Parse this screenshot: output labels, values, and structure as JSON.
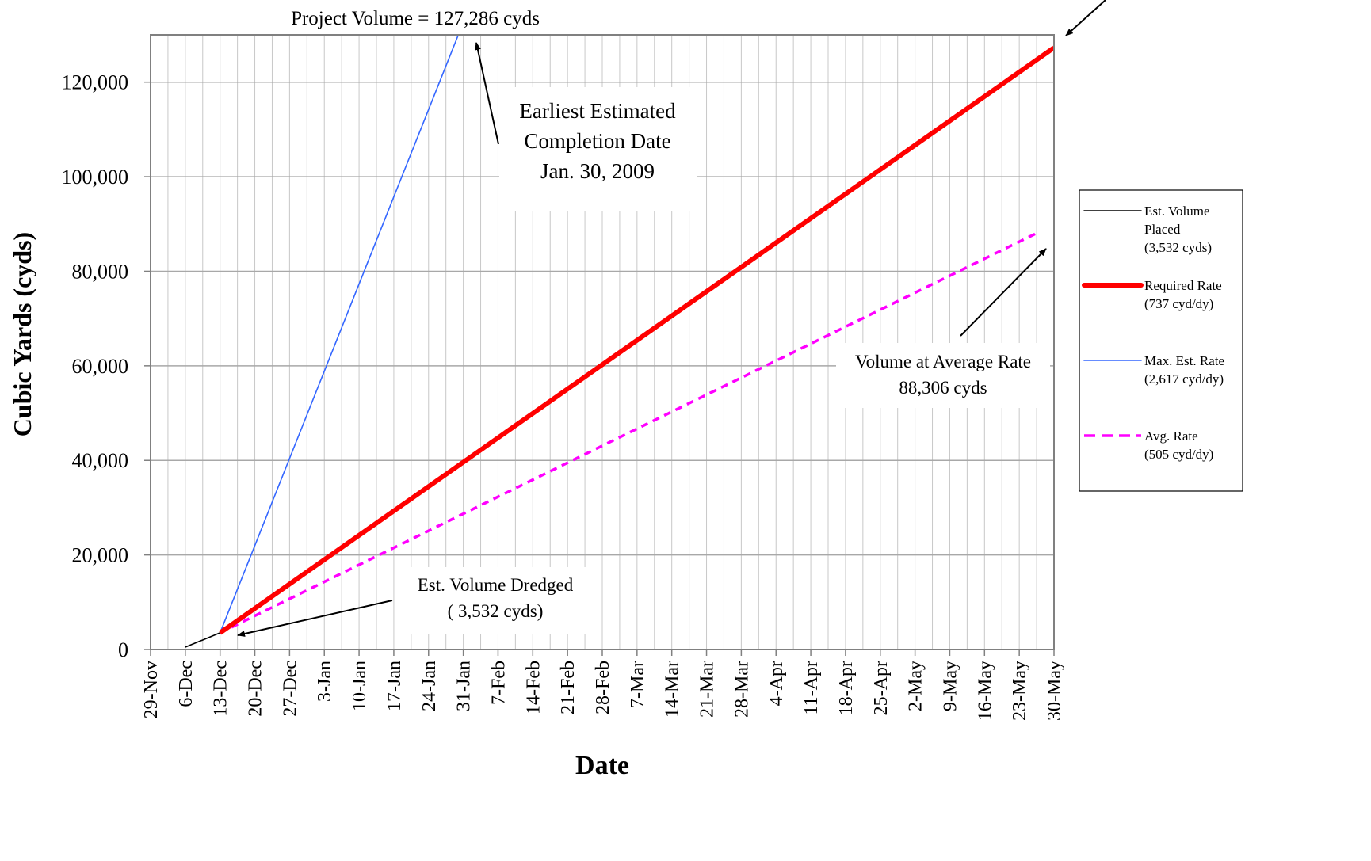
{
  "chart_data": {
    "type": "line",
    "xlabel": "Date",
    "ylabel": "Cubic Yards (cyds)",
    "x_ticks": [
      "29-Nov",
      "6-Dec",
      "13-Dec",
      "20-Dec",
      "27-Dec",
      "3-Jan",
      "10-Jan",
      "17-Jan",
      "24-Jan",
      "31-Jan",
      "7-Feb",
      "14-Feb",
      "21-Feb",
      "28-Feb",
      "7-Mar",
      "14-Mar",
      "21-Mar",
      "28-Mar",
      "4-Apr",
      "11-Apr",
      "18-Apr",
      "25-Apr",
      "2-May",
      "9-May",
      "16-May",
      "23-May",
      "30-May"
    ],
    "y_ticks": [
      "0",
      "20,000",
      "40,000",
      "60,000",
      "80,000",
      "100,000",
      "120,000"
    ],
    "ylim": [
      0,
      130000
    ],
    "xlim": [
      "2008-11-29",
      "2009-05-30"
    ],
    "grid": {
      "horizontal": true,
      "vertical": true
    },
    "legend_position": "right",
    "series": [
      {
        "name": "Est. Volume Placed",
        "legend_lines": [
          "Est. Volume",
          "Placed",
          "(3,532 cyds)"
        ],
        "color": "#000000",
        "style": "solid-thin",
        "points": [
          {
            "x": "2008-12-06",
            "y": 500
          },
          {
            "x": "2008-12-13",
            "y": 3532
          }
        ]
      },
      {
        "name": "Required Rate",
        "legend_lines": [
          "Required Rate",
          "(737 cyd/dy)"
        ],
        "color": "#ff0000",
        "style": "solid-thick",
        "points": [
          {
            "x": "2008-12-13",
            "y": 3532
          },
          {
            "x": "2009-05-30",
            "y": 127286
          }
        ]
      },
      {
        "name": "Max. Est. Rate",
        "legend_lines": [
          "Max. Est. Rate",
          "(2,617 cyd/dy)"
        ],
        "color": "#3366ff",
        "style": "solid-thin",
        "points": [
          {
            "x": "2008-12-13",
            "y": 3532
          },
          {
            "x": "2009-01-30",
            "y": 130000
          }
        ]
      },
      {
        "name": "Avg. Rate",
        "legend_lines": [
          "Avg. Rate",
          "(505 cyd/dy)"
        ],
        "color": "#ff00ff",
        "style": "dashed",
        "points": [
          {
            "x": "2008-12-13",
            "y": 3532
          },
          {
            "x": "2009-05-27",
            "y": 88306
          }
        ]
      }
    ],
    "annotations": [
      {
        "id": "project-volume",
        "lines": [
          "Project Volume = 127,286 cyds"
        ]
      },
      {
        "id": "earliest-completion",
        "lines": [
          "Earliest Estimated",
          "Completion Date",
          "Jan. 30, 2009"
        ]
      },
      {
        "id": "avg-volume",
        "lines": [
          "Volume at Average Rate",
          "88,306 cyds"
        ]
      },
      {
        "id": "volume-dredged",
        "lines": [
          "Est. Volume Dredged",
          "( 3,532 cyds)"
        ]
      }
    ]
  }
}
